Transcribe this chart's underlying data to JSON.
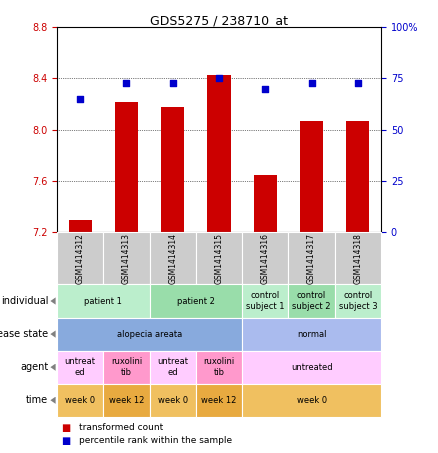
{
  "title": "GDS5275 / 238710_at",
  "samples": [
    "GSM1414312",
    "GSM1414313",
    "GSM1414314",
    "GSM1414315",
    "GSM1414316",
    "GSM1414317",
    "GSM1414318"
  ],
  "bar_values": [
    7.3,
    8.22,
    8.18,
    8.43,
    7.65,
    8.07,
    8.07
  ],
  "dot_values": [
    65,
    73,
    73,
    75,
    70,
    73,
    73
  ],
  "ylim_left": [
    7.2,
    8.8
  ],
  "ylim_right": [
    0,
    100
  ],
  "yticks_left": [
    7.2,
    7.6,
    8.0,
    8.4,
    8.8
  ],
  "yticks_right": [
    0,
    25,
    50,
    75,
    100
  ],
  "bar_color": "#cc0000",
  "dot_color": "#0000cc",
  "bar_bottom": 7.2,
  "annotation_rows": [
    {
      "label": "individual",
      "cells": [
        {
          "text": "patient 1",
          "span": 2,
          "color": "#bbeecc"
        },
        {
          "text": "patient 2",
          "span": 2,
          "color": "#99ddaa"
        },
        {
          "text": "control\nsubject 1",
          "span": 1,
          "color": "#bbeecc"
        },
        {
          "text": "control\nsubject 2",
          "span": 1,
          "color": "#99ddaa"
        },
        {
          "text": "control\nsubject 3",
          "span": 1,
          "color": "#bbeecc"
        }
      ]
    },
    {
      "label": "disease state",
      "cells": [
        {
          "text": "alopecia areata",
          "span": 4,
          "color": "#88aadd"
        },
        {
          "text": "normal",
          "span": 3,
          "color": "#aabbee"
        }
      ]
    },
    {
      "label": "agent",
      "cells": [
        {
          "text": "untreat\ned",
          "span": 1,
          "color": "#ffccff"
        },
        {
          "text": "ruxolini\ntib",
          "span": 1,
          "color": "#ff99cc"
        },
        {
          "text": "untreat\ned",
          "span": 1,
          "color": "#ffccff"
        },
        {
          "text": "ruxolini\ntib",
          "span": 1,
          "color": "#ff99cc"
        },
        {
          "text": "untreated",
          "span": 3,
          "color": "#ffccff"
        }
      ]
    },
    {
      "label": "time",
      "cells": [
        {
          "text": "week 0",
          "span": 1,
          "color": "#f0c060"
        },
        {
          "text": "week 12",
          "span": 1,
          "color": "#e8aa40"
        },
        {
          "text": "week 0",
          "span": 1,
          "color": "#f0c060"
        },
        {
          "text": "week 12",
          "span": 1,
          "color": "#e8aa40"
        },
        {
          "text": "week 0",
          "span": 3,
          "color": "#f0c060"
        }
      ]
    }
  ],
  "legend_items": [
    {
      "color": "#cc0000",
      "label": "transformed count"
    },
    {
      "color": "#0000cc",
      "label": "percentile rank within the sample"
    }
  ],
  "label_color_left": "#cc0000",
  "label_color_right": "#0000cc",
  "sample_cell_color": "#cccccc",
  "plot_bg_color": "#ffffff",
  "right_ytick_labels": [
    "0",
    "25",
    "50",
    "75",
    "100%"
  ]
}
